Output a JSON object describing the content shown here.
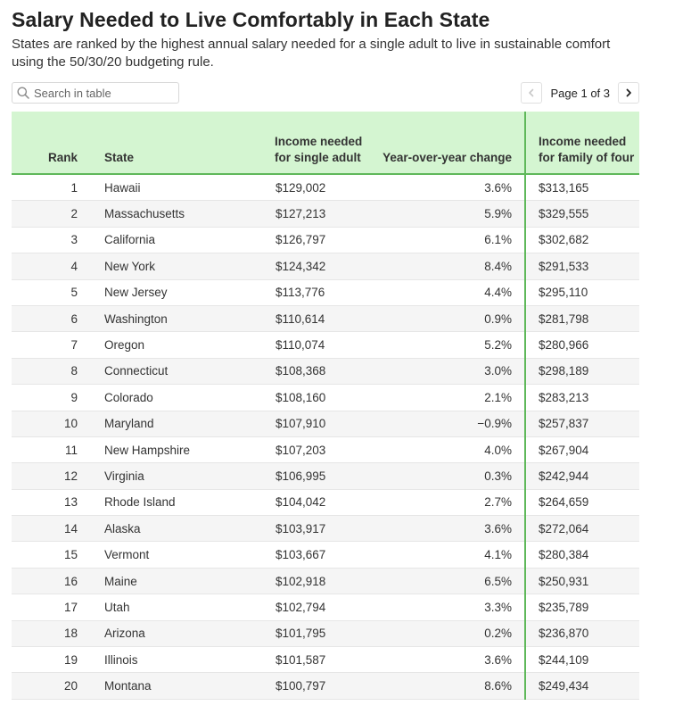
{
  "header": {
    "title": "Salary Needed to Live Comfortably in Each State",
    "subtitle": "States are ranked by the highest annual salary needed for a single adult to live in sustainable comfort using the 50/30/20 budgeting rule."
  },
  "search": {
    "placeholder": "Search in table",
    "value": ""
  },
  "pagination": {
    "label": "Page 1 of 3"
  },
  "columns": {
    "rank": "Rank",
    "state": "State",
    "single": "Income needed for single adult",
    "yoy": "Year-over-year change",
    "family": "Income needed for family of four"
  },
  "rows": [
    {
      "rank": "1",
      "state": "Hawaii",
      "single": "$129,002",
      "yoy": "3.6%",
      "family": "$313,165"
    },
    {
      "rank": "2",
      "state": "Massachusetts",
      "single": "$127,213",
      "yoy": "5.9%",
      "family": "$329,555"
    },
    {
      "rank": "3",
      "state": "California",
      "single": "$126,797",
      "yoy": "6.1%",
      "family": "$302,682"
    },
    {
      "rank": "4",
      "state": "New York",
      "single": "$124,342",
      "yoy": "8.4%",
      "family": "$291,533"
    },
    {
      "rank": "5",
      "state": "New Jersey",
      "single": "$113,776",
      "yoy": "4.4%",
      "family": "$295,110"
    },
    {
      "rank": "6",
      "state": "Washington",
      "single": "$110,614",
      "yoy": "0.9%",
      "family": "$281,798"
    },
    {
      "rank": "7",
      "state": "Oregon",
      "single": "$110,074",
      "yoy": "5.2%",
      "family": "$280,966"
    },
    {
      "rank": "8",
      "state": "Connecticut",
      "single": "$108,368",
      "yoy": "3.0%",
      "family": "$298,189"
    },
    {
      "rank": "9",
      "state": "Colorado",
      "single": "$108,160",
      "yoy": "2.1%",
      "family": "$283,213"
    },
    {
      "rank": "10",
      "state": "Maryland",
      "single": "$107,910",
      "yoy": "−0.9%",
      "family": "$257,837"
    },
    {
      "rank": "11",
      "state": "New Hampshire",
      "single": "$107,203",
      "yoy": "4.0%",
      "family": "$267,904"
    },
    {
      "rank": "12",
      "state": "Virginia",
      "single": "$106,995",
      "yoy": "0.3%",
      "family": "$242,944"
    },
    {
      "rank": "13",
      "state": "Rhode Island",
      "single": "$104,042",
      "yoy": "2.7%",
      "family": "$264,659"
    },
    {
      "rank": "14",
      "state": "Alaska",
      "single": "$103,917",
      "yoy": "3.6%",
      "family": "$272,064"
    },
    {
      "rank": "15",
      "state": "Vermont",
      "single": "$103,667",
      "yoy": "4.1%",
      "family": "$280,384"
    },
    {
      "rank": "16",
      "state": "Maine",
      "single": "$102,918",
      "yoy": "6.5%",
      "family": "$250,931"
    },
    {
      "rank": "17",
      "state": "Utah",
      "single": "$102,794",
      "yoy": "3.3%",
      "family": "$235,789"
    },
    {
      "rank": "18",
      "state": "Arizona",
      "single": "$101,795",
      "yoy": "0.2%",
      "family": "$236,870"
    },
    {
      "rank": "19",
      "state": "Illinois",
      "single": "$101,587",
      "yoy": "3.6%",
      "family": "$244,109"
    },
    {
      "rank": "20",
      "state": "Montana",
      "single": "$100,797",
      "yoy": "8.6%",
      "family": "$249,434"
    }
  ],
  "colors": {
    "header_bg": "#d4f5d1",
    "accent_green": "#5fb85a",
    "zebra": "#f5f5f5"
  },
  "icons": {
    "search": "search-icon",
    "prev": "chevron-left-icon",
    "next": "chevron-right-icon"
  }
}
